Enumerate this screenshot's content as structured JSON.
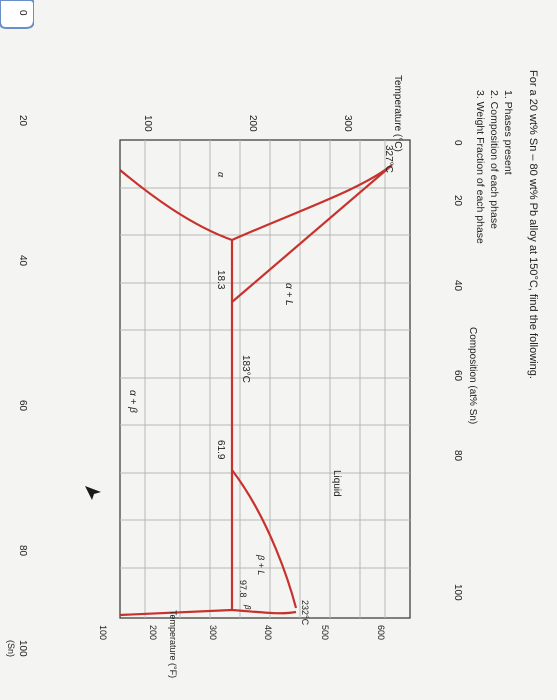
{
  "question": {
    "title": "For a 20 wt% Sn – 80 wt% Pb alloy at 150°C, find the following.",
    "items": [
      "1.  Phases present",
      "2.  Composition of each phase",
      "3.  Weight Fraction of each phase"
    ]
  },
  "diagram": {
    "top_axis_title": "Composition (at% Sn)",
    "top_ticks": [
      "0",
      "20",
      "40",
      "60",
      "80",
      "100"
    ],
    "bottom_ticks": [
      "0",
      "20",
      "40",
      "60",
      "80",
      "100"
    ],
    "bottom_end_label": "(Sn)",
    "left_axis_title": "Temperature (°C)",
    "left_ticks": [
      "300",
      "200",
      "100"
    ],
    "right_axis_title": "Temperature (°F)",
    "right_ticks": [
      "600",
      "500",
      "400",
      "300",
      "200",
      "100"
    ],
    "labels": {
      "pb_melt": "327°C",
      "sn_melt": "232°C",
      "eutectic_temp": "183°C",
      "alpha_limit": "18.3",
      "eutectic_comp": "61.9",
      "beta_limit": "97.8",
      "liquid": "Liquid",
      "alpha_plus_l": "α + L",
      "beta_plus_l": "β + L",
      "alpha_plus_beta": "α + β",
      "alpha": "α",
      "beta": "β"
    },
    "colors": {
      "phase_lines": "#c8322d",
      "grid": "#b7b7b7"
    }
  }
}
